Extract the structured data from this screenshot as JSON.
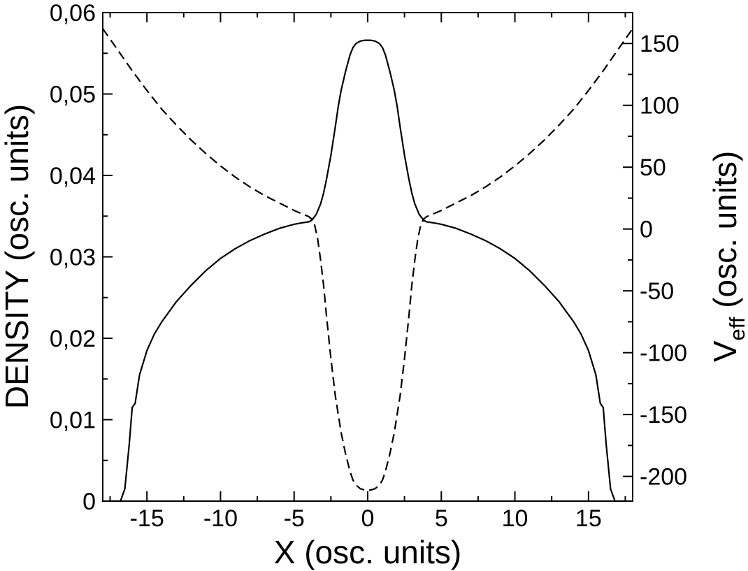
{
  "chart_data": {
    "type": "line",
    "title": "",
    "xlabel": "X (osc. units)",
    "ylabel_left": "DENSITY (osc. units)",
    "ylabel_right": {
      "main": "V",
      "sub": "eff",
      "rest": " (osc. units)"
    },
    "xlim": [
      -18,
      18
    ],
    "ylim_left": [
      0,
      0.06
    ],
    "ylim_right": [
      -220,
      175
    ],
    "x_ticks": [
      -15,
      -10,
      -5,
      0,
      5,
      10,
      15
    ],
    "x_tick_labels": [
      "-15",
      "-10",
      "-5",
      "0",
      "5",
      "10",
      "15"
    ],
    "y_left_ticks": [
      0,
      0.01,
      0.02,
      0.03,
      0.04,
      0.05,
      0.06
    ],
    "y_left_tick_labels": [
      "0",
      "0,01",
      "0,02",
      "0,03",
      "0,04",
      "0,05",
      "0,06"
    ],
    "y_right_ticks": [
      -200,
      -150,
      -100,
      -50,
      0,
      50,
      100,
      150
    ],
    "y_right_tick_labels": [
      "-200",
      "-150",
      "-100",
      "-50",
      "0",
      "50",
      "100",
      "150"
    ],
    "grid": false,
    "legend": "none",
    "series": [
      {
        "axis": "left",
        "style": "solid",
        "x": [
          -17.4,
          -16.8,
          -16.5,
          -16.2,
          -16.0,
          -15.8,
          -15.5,
          -15.0,
          -14.5,
          -14.0,
          -13.0,
          -12.0,
          -11.0,
          -10.0,
          -9.0,
          -8.0,
          -7.0,
          -6.0,
          -5.0,
          -4.4,
          -4.0,
          -3.8,
          -3.5,
          -3.2,
          -3.0,
          -2.8,
          -2.5,
          -2.2,
          -2.0,
          -1.8,
          -1.5,
          -1.2,
          -1.0,
          -0.8,
          -0.5,
          -0.2,
          0.0,
          0.2,
          0.5,
          0.8,
          1.0,
          1.2,
          1.5,
          1.8,
          2.0,
          2.2,
          2.5,
          2.8,
          3.0,
          3.2,
          3.5,
          3.8,
          4.0,
          4.4,
          5.0,
          6.0,
          7.0,
          8.0,
          9.0,
          10.0,
          11.0,
          12.0,
          13.0,
          14.0,
          14.5,
          15.0,
          15.5,
          15.8,
          16.0,
          16.2,
          16.5,
          16.8,
          17.4
        ],
        "y": [
          0.0,
          0.0,
          0.0015,
          0.007,
          0.0115,
          0.012,
          0.0155,
          0.0185,
          0.0205,
          0.022,
          0.0245,
          0.0265,
          0.0283,
          0.0298,
          0.031,
          0.032,
          0.0328,
          0.0335,
          0.034,
          0.0342,
          0.0343,
          0.0345,
          0.0352,
          0.0365,
          0.0378,
          0.0395,
          0.0425,
          0.046,
          0.0485,
          0.0505,
          0.0528,
          0.0548,
          0.0557,
          0.0562,
          0.0565,
          0.0566,
          0.0566,
          0.0566,
          0.0565,
          0.0562,
          0.0557,
          0.0548,
          0.0528,
          0.0505,
          0.0485,
          0.046,
          0.0425,
          0.0395,
          0.0378,
          0.0365,
          0.0352,
          0.0345,
          0.0343,
          0.0342,
          0.034,
          0.0335,
          0.0328,
          0.032,
          0.031,
          0.0298,
          0.0283,
          0.0265,
          0.0245,
          0.022,
          0.0205,
          0.0185,
          0.0155,
          0.012,
          0.0115,
          0.007,
          0.0015,
          0.0,
          0.0
        ]
      },
      {
        "axis": "right",
        "style": "dashed",
        "x": [
          -18.0,
          -17.0,
          -16.0,
          -15.0,
          -14.0,
          -13.0,
          -12.0,
          -11.0,
          -10.0,
          -9.0,
          -8.0,
          -7.0,
          -6.0,
          -5.0,
          -4.5,
          -4.0,
          -3.8,
          -3.6,
          -3.4,
          -3.2,
          -3.0,
          -2.8,
          -2.5,
          -2.2,
          -2.0,
          -1.8,
          -1.5,
          -1.2,
          -1.0,
          -0.8,
          -0.5,
          -0.2,
          0.0,
          0.2,
          0.5,
          0.8,
          1.0,
          1.2,
          1.5,
          1.8,
          2.0,
          2.2,
          2.5,
          2.8,
          3.0,
          3.2,
          3.4,
          3.6,
          3.8,
          4.0,
          4.5,
          5.0,
          6.0,
          7.0,
          8.0,
          9.0,
          10.0,
          11.0,
          12.0,
          13.0,
          14.0,
          15.0,
          16.0,
          17.0,
          18.0
        ],
        "y": [
          162,
          145,
          128,
          112,
          97,
          84,
          72,
          61,
          51,
          42,
          34,
          27,
          21,
          15,
          12.5,
          10,
          8,
          3,
          -8,
          -25,
          -45,
          -70,
          -105,
          -135,
          -150,
          -165,
          -182,
          -196,
          -203,
          -207,
          -210,
          -211,
          -211,
          -211,
          -210,
          -207,
          -203,
          -196,
          -182,
          -165,
          -150,
          -135,
          -105,
          -70,
          -45,
          -25,
          -8,
          3,
          8,
          10,
          12.5,
          15,
          21,
          27,
          34,
          42,
          51,
          61,
          72,
          84,
          97,
          112,
          128,
          145,
          162
        ]
      }
    ]
  }
}
